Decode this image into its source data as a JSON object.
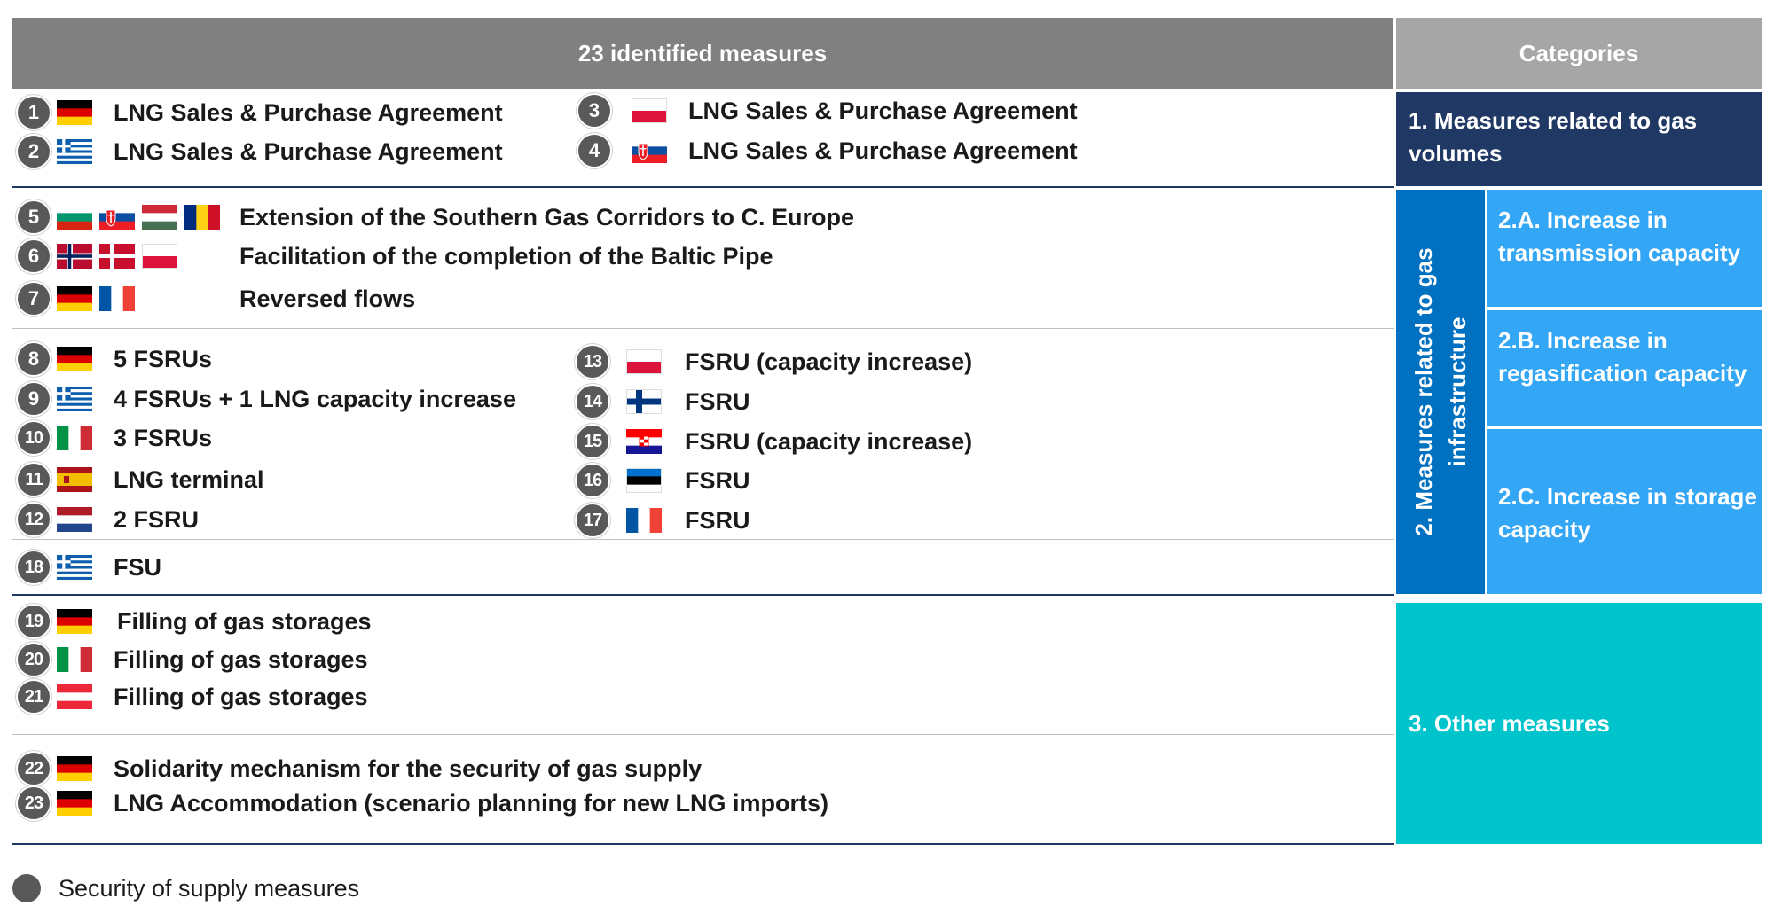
{
  "header": {
    "measures_title": "23 identified measures",
    "categories_title": "Categories"
  },
  "categories": {
    "cat1": "1. Measures related to gas volumes",
    "cat2": "2. Measures related to gas infrastructure",
    "sub_a": "2.A. Increase in transmission capacity",
    "sub_b": "2.B. Increase in regasification capacity",
    "sub_c": "2.C. Increase in storage capacity",
    "cat3": "3. Other measures"
  },
  "measures": [
    {
      "num": "1",
      "flags": [
        "germany"
      ],
      "label": "LNG Sales & Purchase Agreement"
    },
    {
      "num": "2",
      "flags": [
        "greece"
      ],
      "label": "LNG Sales & Purchase Agreement"
    },
    {
      "num": "3",
      "flags": [
        "poland"
      ],
      "label": "LNG Sales & Purchase Agreement"
    },
    {
      "num": "4",
      "flags": [
        "slovakia"
      ],
      "label": "LNG Sales & Purchase Agreement"
    },
    {
      "num": "5",
      "flags": [
        "bulgaria",
        "slovakia",
        "hungary",
        "romania"
      ],
      "label": "Extension of the Southern Gas Corridors to C. Europe"
    },
    {
      "num": "6",
      "flags": [
        "norway",
        "denmark",
        "poland"
      ],
      "label": "Facilitation of the completion of the Baltic Pipe"
    },
    {
      "num": "7",
      "flags": [
        "germany",
        "france"
      ],
      "label": "Reversed flows"
    },
    {
      "num": "8",
      "flags": [
        "germany"
      ],
      "label": "5 FSRUs"
    },
    {
      "num": "9",
      "flags": [
        "greece"
      ],
      "label": "4 FSRUs + 1 LNG capacity increase"
    },
    {
      "num": "10",
      "flags": [
        "italy"
      ],
      "label": "3 FSRUs"
    },
    {
      "num": "11",
      "flags": [
        "spain"
      ],
      "label": "LNG terminal"
    },
    {
      "num": "12",
      "flags": [
        "netherlands"
      ],
      "label": "2 FSRU"
    },
    {
      "num": "13",
      "flags": [
        "poland"
      ],
      "label": "FSRU (capacity increase)"
    },
    {
      "num": "14",
      "flags": [
        "finland"
      ],
      "label": "FSRU"
    },
    {
      "num": "15",
      "flags": [
        "croatia"
      ],
      "label": "FSRU (capacity increase)"
    },
    {
      "num": "16",
      "flags": [
        "estonia"
      ],
      "label": "FSRU"
    },
    {
      "num": "17",
      "flags": [
        "france"
      ],
      "label": "FSRU"
    },
    {
      "num": "18",
      "flags": [
        "greece"
      ],
      "label": "FSU"
    },
    {
      "num": "19",
      "flags": [
        "germany"
      ],
      "label": "Filling of gas storages"
    },
    {
      "num": "20",
      "flags": [
        "italy"
      ],
      "label": "Filling of gas storages"
    },
    {
      "num": "21",
      "flags": [
        "austria"
      ],
      "label": "Filling of gas storages"
    },
    {
      "num": "22",
      "flags": [
        "germany"
      ],
      "label": "Solidarity mechanism for the security of gas supply"
    },
    {
      "num": "23",
      "flags": [
        "germany"
      ],
      "label": "LNG Accommodation (scenario planning for new LNG imports)"
    }
  ],
  "legend": {
    "label": "Security of supply measures",
    "marker_color": "#595959"
  },
  "colors": {
    "header_measures": "#808080",
    "header_categories": "#a6a6a6",
    "cat1": "#1f3864",
    "cat2": "#0070c0",
    "subcategory": "#33a6f5",
    "cat3": "#00c4cc"
  }
}
